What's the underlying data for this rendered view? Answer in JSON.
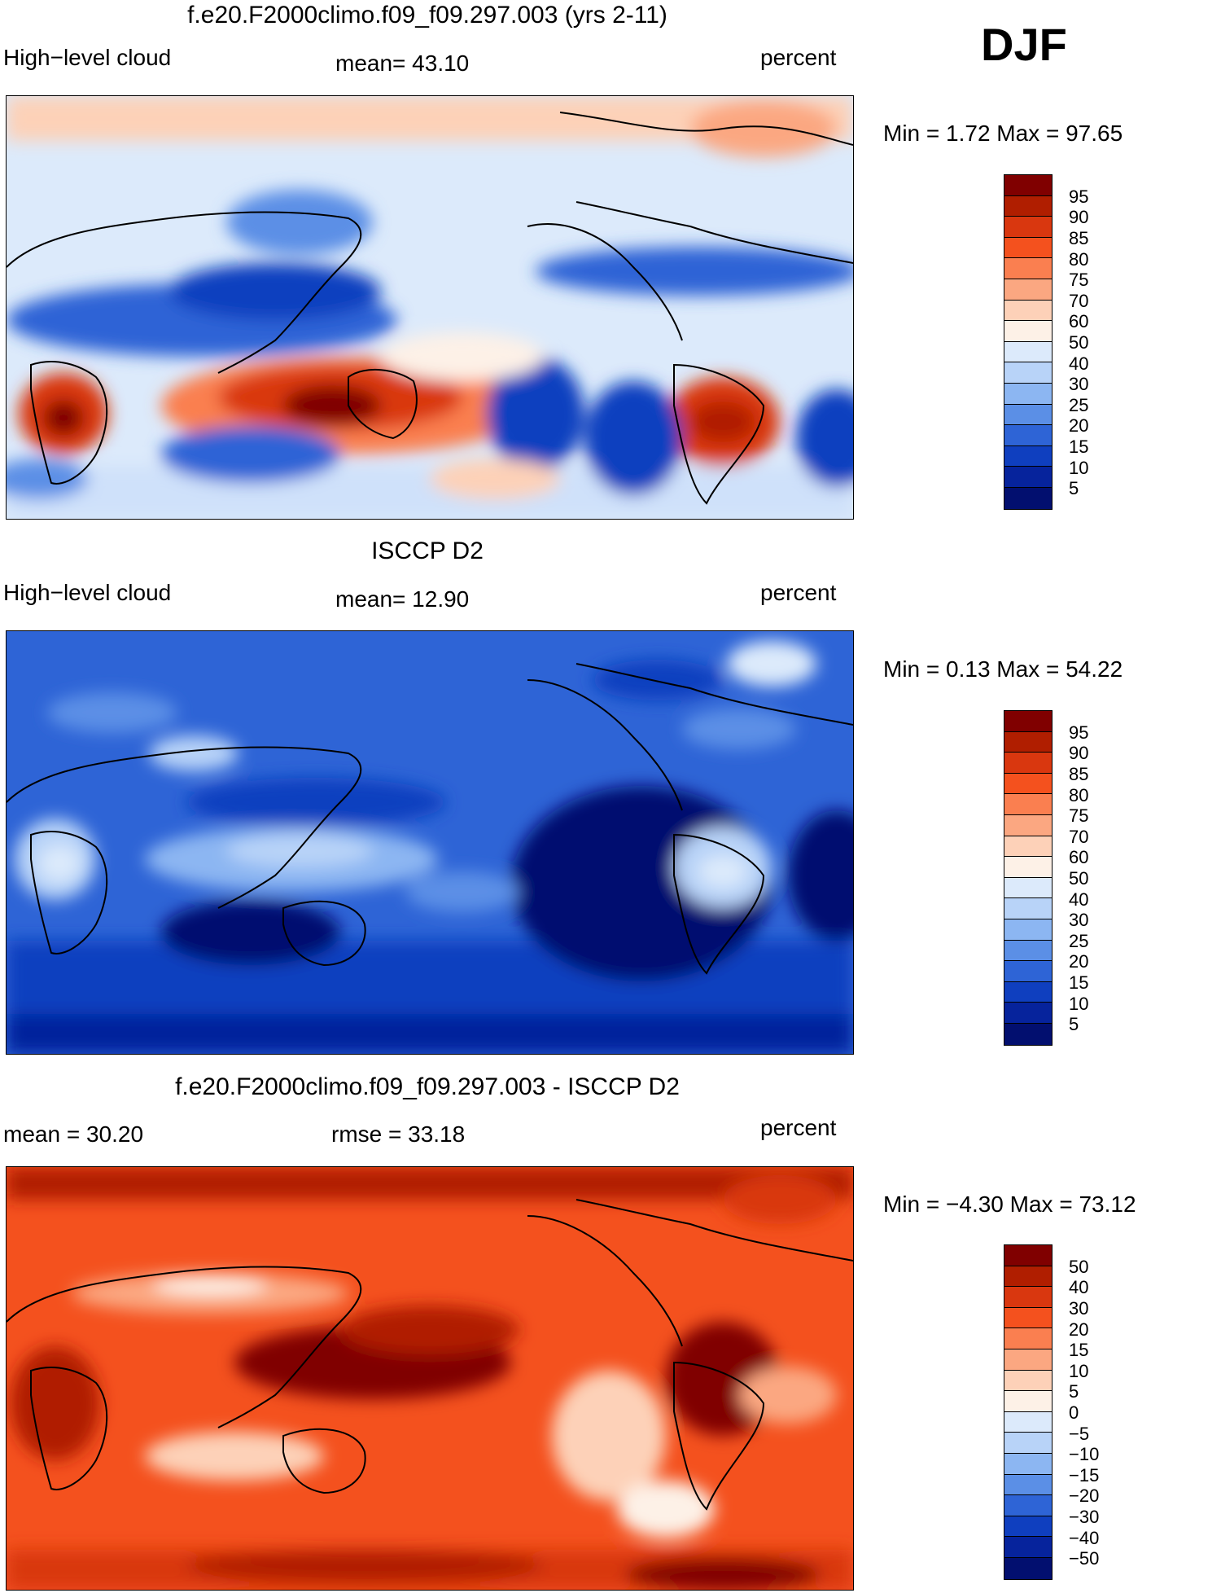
{
  "season": "DJF",
  "panels": [
    {
      "title": "f.e20.F2000climo.f09_f09.297.003 (yrs 2-11)",
      "left_label": "High−level  cloud",
      "center_label": "mean=   43.10",
      "right_label": "percent",
      "minmax": "Min  =      1.72  Max  =     97.65",
      "colorbar": {
        "labels": [
          "95",
          "90",
          "85",
          "80",
          "75",
          "70",
          "60",
          "50",
          "40",
          "30",
          "25",
          "20",
          "15",
          "10",
          "5"
        ],
        "colors": [
          "#800000",
          "#b01e00",
          "#d9370f",
          "#f4511e",
          "#fa7f50",
          "#fba781",
          "#fdd1b8",
          "#fdf1e7",
          "#dceafb",
          "#b8d3f8",
          "#8cb6f2",
          "#5b8fe6",
          "#2e64d6",
          "#0f3fbf",
          "#06239c",
          "#020f6f"
        ]
      },
      "stats": {
        "mean": 43.1,
        "min": 1.72,
        "max": 97.65,
        "units": "percent"
      }
    },
    {
      "title": "ISCCP D2",
      "left_label": "High−level  cloud",
      "center_label": "mean=   12.90",
      "right_label": "percent",
      "minmax": "Min  =      0.13  Max  =     54.22",
      "colorbar": {
        "labels": [
          "95",
          "90",
          "85",
          "80",
          "75",
          "70",
          "60",
          "50",
          "40",
          "30",
          "25",
          "20",
          "15",
          "10",
          "5"
        ],
        "colors": [
          "#800000",
          "#b01e00",
          "#d9370f",
          "#f4511e",
          "#fa7f50",
          "#fba781",
          "#fdd1b8",
          "#fdf1e7",
          "#dceafb",
          "#b8d3f8",
          "#8cb6f2",
          "#5b8fe6",
          "#2e64d6",
          "#0f3fbf",
          "#06239c",
          "#020f6f"
        ]
      },
      "stats": {
        "mean": 12.9,
        "min": 0.13,
        "max": 54.22,
        "units": "percent"
      }
    },
    {
      "title": "f.e20.F2000climo.f09_f09.297.003 - ISCCP D2",
      "left_label": "mean  =    30.20",
      "center_label": "rmse  =    33.18",
      "right_label": "percent",
      "minmax": "Min  =   −4.30  Max  =     73.12",
      "colorbar": {
        "labels": [
          "50",
          "40",
          "30",
          "20",
          "15",
          "10",
          "5",
          "0",
          "−5",
          "−10",
          "−15",
          "−20",
          "−30",
          "−40",
          "−50"
        ],
        "colors": [
          "#800000",
          "#b01e00",
          "#d9370f",
          "#f4511e",
          "#fa7f50",
          "#fba781",
          "#fdd1b8",
          "#fdf1e7",
          "#dceafb",
          "#b8d3f8",
          "#8cb6f2",
          "#5b8fe6",
          "#2e64d6",
          "#0f3fbf",
          "#06239c",
          "#020f6f"
        ]
      },
      "stats": {
        "mean": 30.2,
        "rmse": 33.18,
        "min": -4.3,
        "max": 73.12,
        "units": "percent"
      }
    }
  ]
}
